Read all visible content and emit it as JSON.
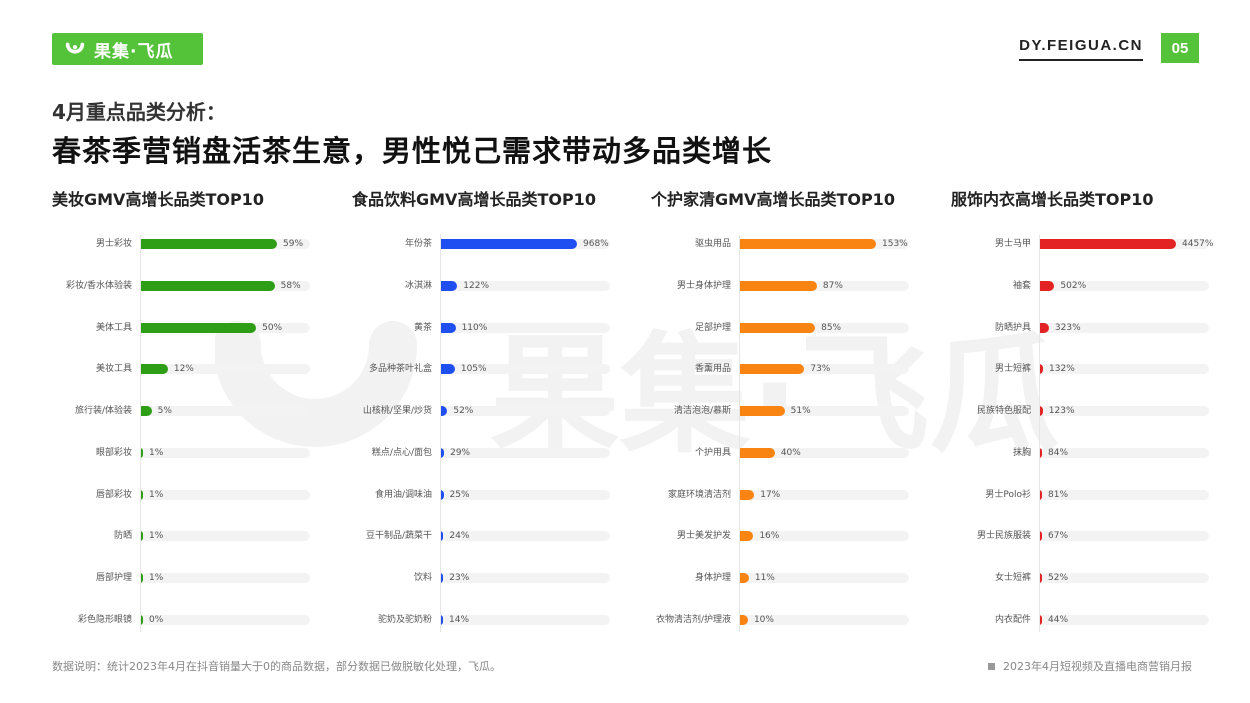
{
  "header": {
    "logo_text": "果集·飞瓜",
    "site": "DY.FEIGUA.CN",
    "page_number": "05",
    "brand_color": "#55c33a"
  },
  "subtitle": "4月重点品类分析：",
  "title": "春茶季营销盘活茶生意，男性悦己需求带动多品类增长",
  "watermark_text": "果集·飞瓜",
  "chart_data": [
    {
      "type": "bar",
      "orientation": "horizontal",
      "title": "美妆GMV高增长品类TOP10",
      "color": "#2e9e16",
      "categories": [
        "男士彩妆",
        "彩妆/香水体验装",
        "美体工具",
        "美妆工具",
        "旅行装/体验装",
        "眼部彩妆",
        "唇部彩妆",
        "防晒",
        "唇部护理",
        "彩色隐形眼镜"
      ],
      "values": [
        59,
        58,
        50,
        12,
        5,
        1,
        1,
        1,
        1,
        0
      ],
      "labels": [
        "59%",
        "58%",
        "50%",
        "12%",
        "5%",
        "1%",
        "1%",
        "1%",
        "1%",
        "0%"
      ],
      "unit": "%"
    },
    {
      "type": "bar",
      "orientation": "horizontal",
      "title": "食品饮料GMV高增长品类TOP10",
      "color": "#1f4ff0",
      "categories": [
        "年份茶",
        "冰淇淋",
        "黄茶",
        "多品种茶叶礼盒",
        "山核桃/坚果/炒货",
        "糕点/点心/面包",
        "食用油/调味油",
        "豆干制品/蔬菜干",
        "饮料",
        "驼奶及驼奶粉"
      ],
      "values": [
        968,
        122,
        110,
        105,
        52,
        29,
        25,
        24,
        23,
        14
      ],
      "labels": [
        "968%",
        "122%",
        "110%",
        "105%",
        "52%",
        "29%",
        "25%",
        "24%",
        "23%",
        "14%"
      ],
      "unit": "%"
    },
    {
      "type": "bar",
      "orientation": "horizontal",
      "title": "个护家清GMV高增长品类TOP10",
      "color": "#fa8412",
      "categories": [
        "驱虫用品",
        "男士身体护理",
        "足部护理",
        "香薰用品",
        "清洁泡泡/慕斯",
        "个护用具",
        "家庭环境清洁剂",
        "男士美发护发",
        "身体护理",
        "衣物清洁剂/护理液"
      ],
      "values": [
        153,
        87,
        85,
        73,
        51,
        40,
        17,
        16,
        11,
        10
      ],
      "labels": [
        "153%",
        "87%",
        "85%",
        "73%",
        "51%",
        "40%",
        "17%",
        "16%",
        "11%",
        "10%"
      ],
      "unit": "%"
    },
    {
      "type": "bar",
      "orientation": "horizontal",
      "title": "服饰内衣高增长品类TOP10",
      "color": "#e32323",
      "categories": [
        "男士马甲",
        "袖套",
        "防晒护具",
        "男士短裤",
        "民族特色服配",
        "抹胸",
        "男士Polo衫",
        "男士民族服装",
        "女士短裤",
        "内衣配件"
      ],
      "values": [
        4457,
        502,
        323,
        132,
        123,
        84,
        81,
        67,
        52,
        44
      ],
      "labels": [
        "4457%",
        "502%",
        "323%",
        "132%",
        "123%",
        "84%",
        "81%",
        "67%",
        "52%",
        "44%"
      ],
      "unit": "%"
    }
  ],
  "footer": {
    "note": "数据说明：统计2023年4月在抖音销量大于0的商品数据，部分数据已做脱敏化处理，飞瓜。",
    "report": "2023年4月短视频及直播电商营销月报"
  }
}
